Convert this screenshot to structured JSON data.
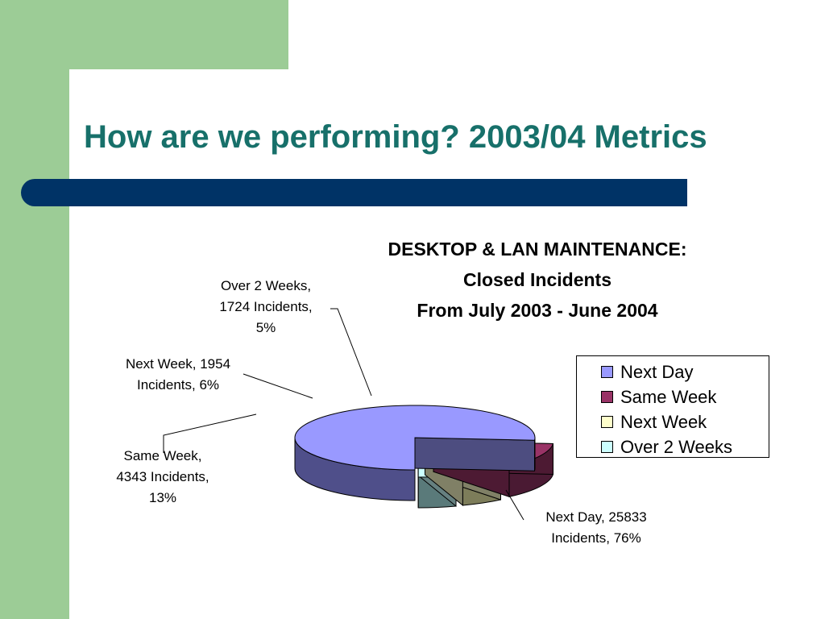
{
  "slide": {
    "title": "How are we performing? 2003/04 Metrics"
  },
  "chart_data": {
    "type": "pie",
    "title_lines": [
      "DESKTOP & LAN MAINTENANCE:",
      "Closed Incidents",
      "From July 2003 - June 2004"
    ],
    "categories": [
      "Next Day",
      "Same Week",
      "Next Week",
      "Over 2 Weeks"
    ],
    "values": [
      25833,
      4343,
      1954,
      1724
    ],
    "percentages": [
      76,
      13,
      6,
      5
    ],
    "colors": [
      "#9999ff",
      "#993366",
      "#ffffcc",
      "#ccffff"
    ],
    "data_labels": [
      [
        "Next Day, 25833",
        "Incidents, 76%"
      ],
      [
        "Same Week,",
        "4343 Incidents,",
        "13%"
      ],
      [
        "Next Week, 1954",
        "Incidents, 6%"
      ],
      [
        "Over 2 Weeks,",
        "1724 Incidents,",
        "5%"
      ]
    ],
    "legend": {
      "position": "right",
      "entries": [
        "Next Day",
        "Same Week",
        "Next Week",
        "Over 2 Weeks"
      ]
    },
    "style": "3d-exploded-pie"
  }
}
